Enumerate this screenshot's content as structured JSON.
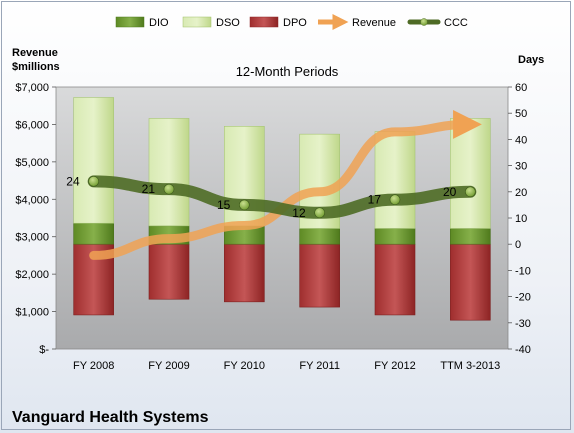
{
  "chart_data": {
    "type": "bar",
    "title": "12-Month Periods",
    "company": "Vanguard Health Systems",
    "left_axis": {
      "title_lines": [
        "Revenue",
        "$millions"
      ],
      "ticks": [
        "$-",
        "$1,000",
        "$2,000",
        "$3,000",
        "$4,000",
        "$5,000",
        "$6,000",
        "$7,000"
      ],
      "range": [
        0,
        7000
      ]
    },
    "right_axis": {
      "title": "Days",
      "ticks": [
        "-40",
        "-30",
        "-20",
        "-10",
        "0",
        "10",
        "20",
        "30",
        "40",
        "50",
        "60"
      ],
      "range": [
        -40,
        60
      ]
    },
    "categories": [
      "FY 2008",
      "FY 2009",
      "FY 2010",
      "FY 2011",
      "FY 2012",
      "TTM 3-2013"
    ],
    "legend": [
      "DIO",
      "DSO",
      "DPO",
      "Revenue",
      "CCC"
    ],
    "series": [
      {
        "name": "DIO",
        "axis": "days",
        "values": [
          8,
          7,
          7,
          6,
          6,
          6
        ],
        "color": "#6e9a2e"
      },
      {
        "name": "DSO",
        "axis": "days",
        "values": [
          48,
          41,
          38,
          36,
          37,
          42
        ],
        "color": "#cfe3a4"
      },
      {
        "name": "DPO",
        "axis": "days",
        "values": [
          -27,
          -21,
          -22,
          -24,
          -27,
          -29
        ],
        "color": "#b23a3a"
      },
      {
        "name": "Revenue",
        "axis": "revenue",
        "values": [
          2500,
          2950,
          3300,
          4200,
          5800,
          6000
        ],
        "color": "#f0a253"
      },
      {
        "name": "CCC",
        "axis": "days",
        "values": [
          24,
          21,
          15,
          12,
          17,
          20
        ],
        "color": "#4e6b25"
      }
    ],
    "ccc_labels": [
      "24",
      "21",
      "15",
      "12",
      "17",
      "20"
    ],
    "grid": false
  }
}
